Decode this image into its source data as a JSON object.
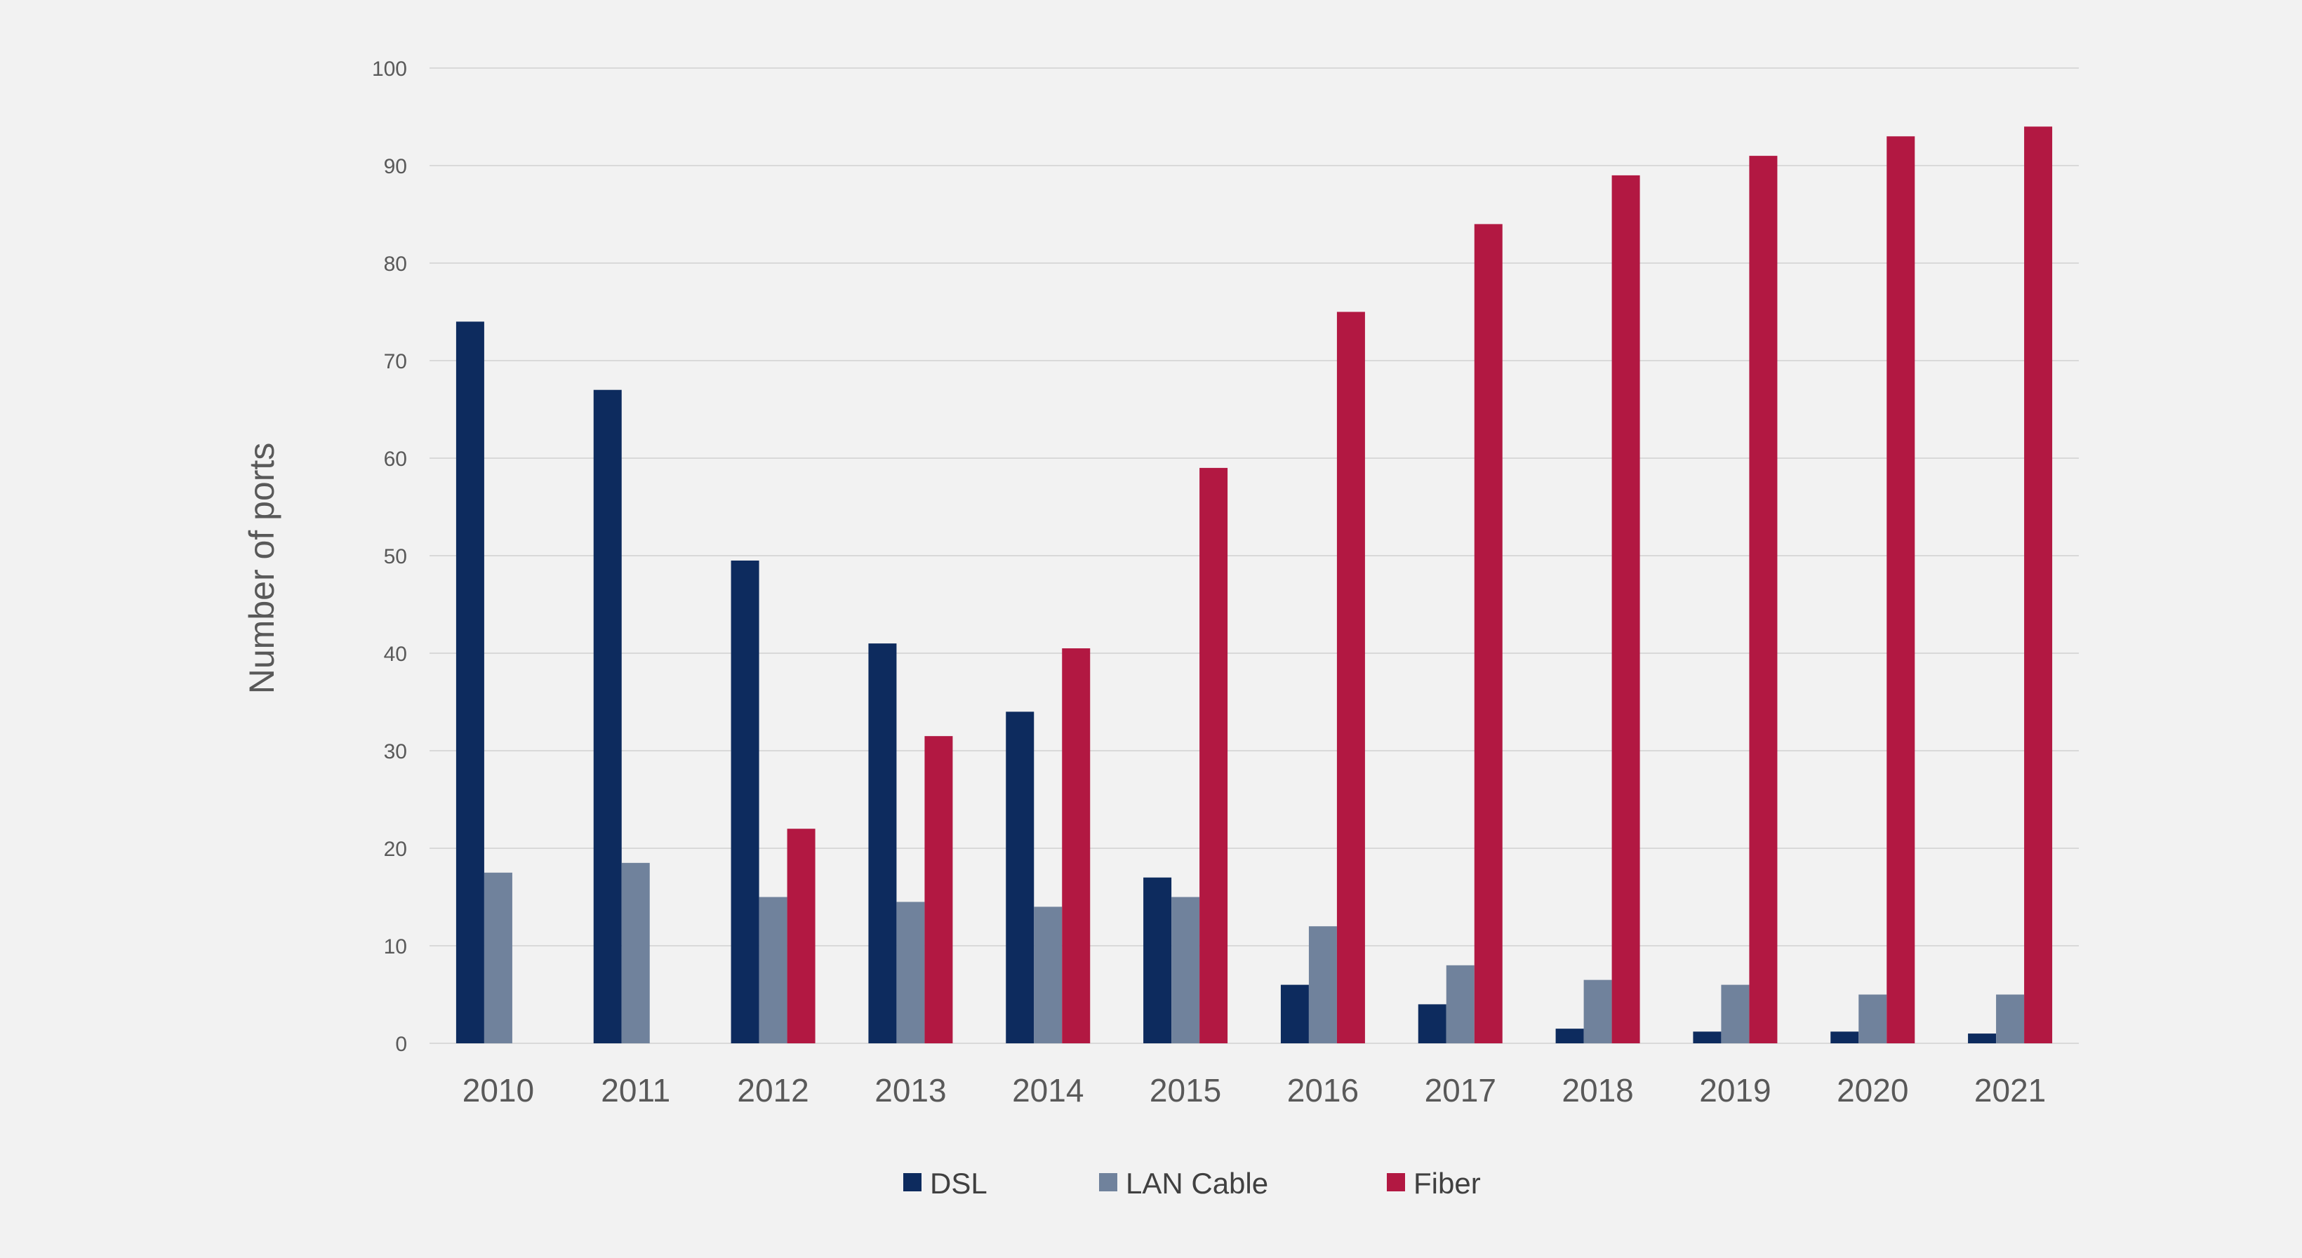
{
  "chart_data": {
    "type": "bar",
    "title": "",
    "xlabel": "",
    "ylabel": "Number of ports",
    "ylim": [
      0,
      100
    ],
    "yticks": [
      0,
      10,
      20,
      30,
      40,
      50,
      60,
      70,
      80,
      90,
      100
    ],
    "grid": true,
    "legend_position": "bottom",
    "categories": [
      "2010",
      "2011",
      "2012",
      "2013",
      "2014",
      "2015",
      "2016",
      "2017",
      "2018",
      "2019",
      "2020",
      "2021"
    ],
    "series": [
      {
        "name": "DSL",
        "color": "#0d2b5e",
        "values": [
          74,
          67,
          49.5,
          41,
          34,
          17,
          6,
          4,
          1.5,
          1.2,
          1.2,
          1
        ]
      },
      {
        "name": "LAN Cable",
        "color": "#70829c",
        "values": [
          17.5,
          18.5,
          15,
          14.5,
          14,
          15,
          12,
          8,
          6.5,
          6,
          5,
          5
        ]
      },
      {
        "name": "Fiber",
        "color": "#b21842",
        "values": [
          null,
          null,
          22,
          31.5,
          40.5,
          59,
          75,
          84,
          89,
          91,
          93,
          94
        ]
      }
    ]
  }
}
